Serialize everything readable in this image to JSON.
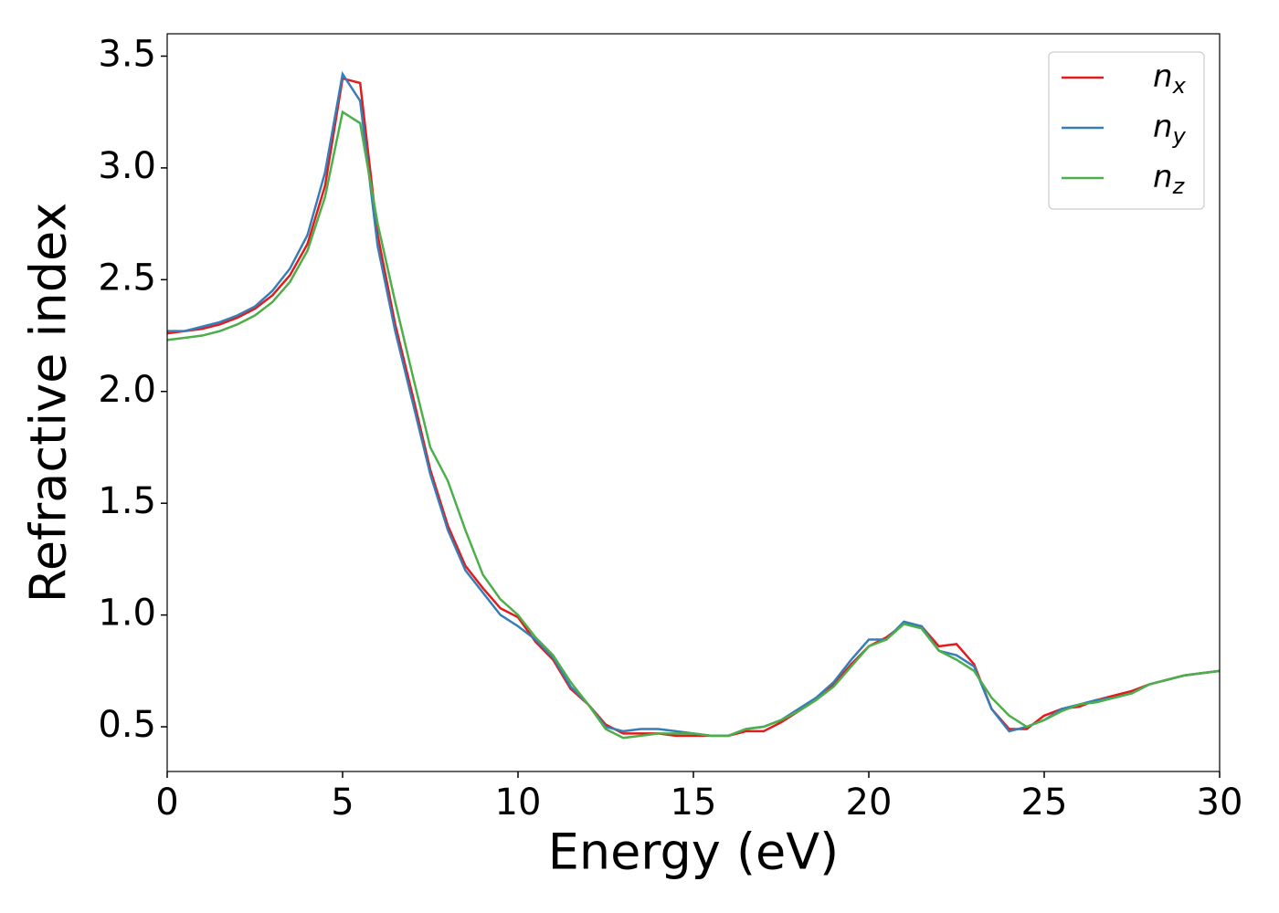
{
  "chart_data": {
    "type": "line",
    "xlabel": "Energy (eV)",
    "ylabel": "Refractive index",
    "x": [
      0,
      0.5,
      1,
      1.5,
      2,
      2.5,
      3,
      3.5,
      4,
      4.5,
      5,
      5.5,
      6,
      6.5,
      7,
      7.5,
      8,
      8.5,
      9,
      9.5,
      10,
      10.5,
      11,
      11.5,
      12,
      12.5,
      13,
      13.5,
      14,
      14.5,
      15,
      15.5,
      16,
      16.5,
      17,
      17.5,
      18,
      18.5,
      19,
      19.5,
      20,
      20.5,
      21,
      21.5,
      22,
      22.5,
      23,
      23.5,
      24,
      24.5,
      25,
      25.5,
      26,
      26.5,
      27,
      27.5,
      28,
      28.5,
      29,
      29.5,
      30
    ],
    "series": [
      {
        "name": "n",
        "subscript": "x",
        "color": "#e41a1c",
        "values": [
          2.26,
          2.27,
          2.28,
          2.3,
          2.33,
          2.37,
          2.43,
          2.52,
          2.66,
          2.92,
          3.4,
          3.38,
          2.7,
          2.3,
          1.98,
          1.65,
          1.4,
          1.22,
          1.12,
          1.03,
          0.99,
          0.88,
          0.8,
          0.67,
          0.6,
          0.51,
          0.47,
          0.47,
          0.47,
          0.46,
          0.46,
          0.46,
          0.46,
          0.48,
          0.48,
          0.52,
          0.57,
          0.62,
          0.69,
          0.78,
          0.86,
          0.9,
          0.96,
          0.95,
          0.86,
          0.87,
          0.78,
          0.58,
          0.49,
          0.49,
          0.55,
          0.58,
          0.59,
          0.62,
          0.64,
          0.66,
          0.69,
          0.71,
          0.73,
          0.74,
          0.75
        ]
      },
      {
        "name": "n",
        "subscript": "y",
        "color": "#377eb8",
        "values": [
          2.27,
          2.27,
          2.29,
          2.31,
          2.34,
          2.38,
          2.45,
          2.55,
          2.7,
          2.98,
          3.42,
          3.3,
          2.65,
          2.27,
          1.95,
          1.63,
          1.38,
          1.2,
          1.1,
          1.0,
          0.95,
          0.89,
          0.81,
          0.68,
          0.6,
          0.5,
          0.48,
          0.49,
          0.49,
          0.48,
          0.47,
          0.46,
          0.46,
          0.49,
          0.5,
          0.53,
          0.58,
          0.63,
          0.7,
          0.8,
          0.89,
          0.89,
          0.97,
          0.95,
          0.84,
          0.82,
          0.77,
          0.58,
          0.48,
          0.5,
          0.53,
          0.58,
          0.6,
          0.62,
          0.63,
          0.65,
          0.69,
          0.71,
          0.73,
          0.74,
          0.75
        ]
      },
      {
        "name": "n",
        "subscript": "z",
        "color": "#4daf4a",
        "values": [
          2.23,
          2.24,
          2.25,
          2.27,
          2.3,
          2.34,
          2.4,
          2.49,
          2.63,
          2.87,
          3.25,
          3.2,
          2.75,
          2.4,
          2.07,
          1.75,
          1.6,
          1.38,
          1.18,
          1.07,
          1.0,
          0.9,
          0.82,
          0.7,
          0.6,
          0.49,
          0.45,
          0.46,
          0.47,
          0.47,
          0.47,
          0.46,
          0.46,
          0.49,
          0.5,
          0.53,
          0.57,
          0.62,
          0.68,
          0.77,
          0.86,
          0.89,
          0.96,
          0.94,
          0.84,
          0.8,
          0.75,
          0.63,
          0.55,
          0.5,
          0.53,
          0.57,
          0.6,
          0.61,
          0.63,
          0.65,
          0.69,
          0.71,
          0.73,
          0.74,
          0.75
        ]
      }
    ],
    "xlim": [
      0,
      30
    ],
    "xticks": [
      0,
      5,
      10,
      15,
      20,
      25,
      30
    ],
    "ylim": [
      0.3,
      3.6
    ],
    "yticks": [
      0.5,
      {
        "value": 1.0,
        "label": "1.0"
      },
      1.5,
      {
        "value": 2.0,
        "label": "2.0"
      },
      2.5,
      {
        "value": 3.0,
        "label": "3.0"
      },
      3.5
    ],
    "grid": false,
    "legend": "upper right"
  }
}
